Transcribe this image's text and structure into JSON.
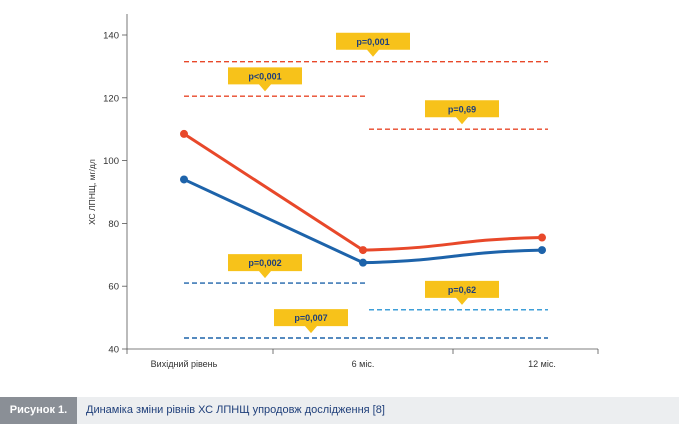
{
  "chart_data": {
    "type": "line",
    "title": "",
    "xlabel": "",
    "ylabel": "ХС ЛПНЩ, мг/дл",
    "categories": [
      "Вихідний рівень",
      "6 міс.",
      "12 міс."
    ],
    "yticks": [
      40,
      60,
      80,
      100,
      120,
      140
    ],
    "ylim": [
      40,
      144
    ],
    "grid": false,
    "legend": "none",
    "series": [
      {
        "color": "#e8482a",
        "values": [
          108.5,
          71.5,
          75.5
        ]
      },
      {
        "color": "#1d63aa",
        "values": [
          94,
          67.5,
          71.5
        ]
      }
    ],
    "reference_lines": [
      {
        "y": 131.5,
        "from": "Вихідний рівень",
        "to": "12 міс.",
        "color": "#e8482a"
      },
      {
        "y": 120.5,
        "from": "Вихідний рівень",
        "to": "6 міс.",
        "color": "#e8482a"
      },
      {
        "y": 110,
        "from": "6 міс.",
        "to": "12 міс.",
        "color": "#e8482a"
      },
      {
        "y": 61,
        "from": "Вихідний рівень",
        "to": "6 міс.",
        "color": "#1d63aa"
      },
      {
        "y": 52.5,
        "from": "6 міс.",
        "to": "12 міс.",
        "color": "#3f9fd8"
      },
      {
        "y": 43.5,
        "from": "Вихідний рівень",
        "to": "12 міс.",
        "color": "#1d63aa"
      }
    ],
    "annotations": [
      {
        "text": "p=0,001",
        "y": 138,
        "between": [
          "Вихідний рівень",
          "12 міс."
        ],
        "pointer_y": 131.5
      },
      {
        "text": "p<0,001",
        "y": 127,
        "between": [
          "Вихідний рівень",
          "6 міс."
        ],
        "pointer_y": 120.5
      },
      {
        "text": "p=0,69",
        "y": 116.5,
        "between": [
          "6 міс.",
          "12 міс."
        ],
        "pointer_y": 110
      },
      {
        "text": "p=0,002",
        "y": 67.5,
        "between": [
          "Вихідний рівень",
          "6 міс."
        ],
        "pointer_y": 61
      },
      {
        "text": "p=0,62",
        "y": 59,
        "between": [
          "6 міс.",
          "12 міс."
        ],
        "pointer_y": 52.5
      },
      {
        "text": "p=0,007",
        "y": 50,
        "between": [
          "Вихідний рівень",
          "12 міс."
        ],
        "pointer_y": 43.5
      }
    ],
    "annotation_color": "#f7c21a"
  },
  "caption": {
    "tag": "Рисунок 1.",
    "text": "Динаміка зміни рівнів ХС ЛПНЩ упродовж дослідження [8]"
  }
}
